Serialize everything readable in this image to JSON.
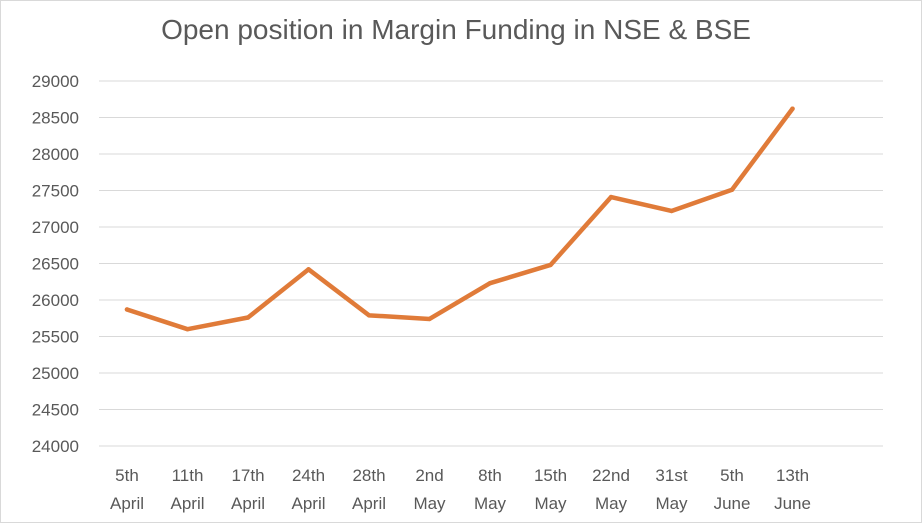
{
  "chart_data": {
    "type": "line",
    "title": "Open position in Margin Funding in NSE & BSE",
    "xlabel": "",
    "ylabel": "",
    "categories": [
      [
        "5th",
        "April"
      ],
      [
        "11th",
        "April"
      ],
      [
        "17th",
        "April"
      ],
      [
        "24th",
        "April"
      ],
      [
        "28th",
        "April"
      ],
      [
        "2nd",
        "May"
      ],
      [
        "8th",
        "May"
      ],
      [
        "15th",
        "May"
      ],
      [
        "22nd",
        "May"
      ],
      [
        "31st",
        "May"
      ],
      [
        "5th",
        "June"
      ],
      [
        "13th",
        "June"
      ]
    ],
    "series": [
      {
        "name": "Open position",
        "color": "#e07b39",
        "values": [
          25870,
          25600,
          25760,
          26420,
          25790,
          25740,
          26230,
          26480,
          27410,
          27220,
          27510,
          28620
        ]
      }
    ],
    "ylim": [
      24000,
      29000
    ],
    "yticks": [
      24000,
      24500,
      25000,
      25500,
      26000,
      26500,
      27000,
      27500,
      28000,
      28500,
      29000
    ],
    "grid": true,
    "legend": "none"
  }
}
